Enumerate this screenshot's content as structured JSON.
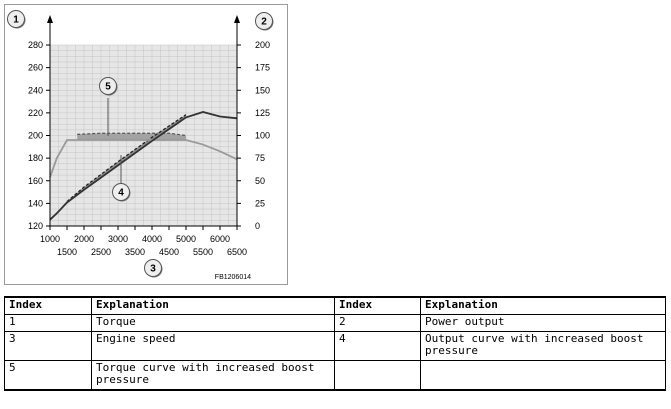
{
  "chart_data": {
    "type": "line",
    "code": "FB1206014",
    "badges": {
      "left_axis": "1",
      "right_axis": "2",
      "x_axis": "3",
      "output_boost": "4",
      "torque_boost": "5"
    },
    "x_ticks_top": [
      "1000",
      "2000",
      "3000",
      "4000",
      "5000",
      "6000"
    ],
    "x_ticks_bottom": [
      "1500",
      "2500",
      "3500",
      "4500",
      "5500",
      "6500"
    ],
    "x_tick_values_top": [
      1000,
      2000,
      3000,
      4000,
      5000,
      6000
    ],
    "x_tick_values_bottom": [
      1500,
      2500,
      3500,
      4500,
      5500,
      6500
    ],
    "xlim": [
      1000,
      6500
    ],
    "y_left_ticks": [
      "280",
      "260",
      "240",
      "220",
      "200",
      "180",
      "160",
      "140",
      "120"
    ],
    "y_left_values": [
      280,
      260,
      240,
      220,
      200,
      180,
      160,
      140,
      120
    ],
    "ylim_left": [
      120,
      280
    ],
    "y_right_ticks": [
      "200",
      "175",
      "150",
      "125",
      "100",
      "75",
      "50",
      "25",
      "0"
    ],
    "y_right_values": [
      200,
      175,
      150,
      125,
      100,
      75,
      50,
      25,
      0
    ],
    "ylim_right": [
      0,
      200
    ],
    "grid": true,
    "series": [
      {
        "axis": "left",
        "style": "torque",
        "x": [
          1000,
          1200,
          1500,
          1800,
          2500,
          4500,
          5000,
          5500,
          6000,
          6500
        ],
        "y": [
          163,
          180,
          196,
          196,
          196,
          196,
          196,
          192,
          186,
          179
        ]
      },
      {
        "axis": "left",
        "style": "torque-boost",
        "x": [
          1800,
          2500,
          3500,
          4500,
          5000
        ],
        "y": [
          201,
          202,
          202,
          202,
          200
        ]
      },
      {
        "axis": "right",
        "style": "power",
        "x": [
          1000,
          1200,
          1500,
          2000,
          3000,
          4000,
          5000,
          5500,
          6000,
          6500
        ],
        "y": [
          7,
          14,
          26,
          40,
          67,
          94,
          120,
          126,
          121,
          119
        ]
      },
      {
        "axis": "right",
        "style": "power-boost",
        "x": [
          1500,
          2000,
          3000,
          4000,
          5000
        ],
        "y": [
          27,
          43,
          71,
          98,
          123
        ]
      }
    ]
  },
  "table": {
    "headers": [
      "Index",
      "Explanation",
      "Index",
      "Explanation"
    ],
    "rows": [
      [
        "1",
        "Torque",
        "2",
        "Power output"
      ],
      [
        "3",
        "Engine speed",
        "4",
        "Output curve with increased boost pressure"
      ],
      [
        "5",
        "Torque curve with increased boost pressure",
        "",
        ""
      ]
    ]
  }
}
